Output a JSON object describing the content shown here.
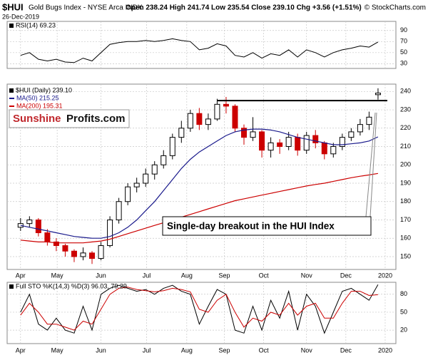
{
  "header": {
    "symbol": "$HUI",
    "name": "Gold Bugs Index - NYSE Arca INDX",
    "date": "26-Dec-2019",
    "quote": "Open 238.24 High 241.74 Low 235.54 Close 239.10 Chg +3.56 (+1.51%)",
    "copyright": "© StockCharts.com"
  },
  "logo": {
    "part1": "Sunshine",
    "part2": "Profits.com"
  },
  "annotation": "Single-day breakout in the HUI Index",
  "chart_data": [
    {
      "type": "line",
      "legend": "RSI(14) 69.23",
      "xlim": [
        -1.5,
        42
      ],
      "ylim": [
        15,
        100
      ],
      "yticks": [
        90,
        70,
        50,
        30
      ],
      "grid": true,
      "series": [
        {
          "name": "RSI(14)",
          "color": "#000000",
          "values": [
            45,
            50,
            38,
            35,
            38,
            33,
            32,
            40,
            35,
            50,
            65,
            68,
            70,
            70,
            72,
            70,
            72,
            75,
            72,
            70,
            55,
            58,
            66,
            62,
            45,
            42,
            50,
            40,
            48,
            45,
            55,
            42,
            55,
            50,
            42,
            50,
            55,
            58,
            62,
            60,
            69.23
          ]
        }
      ]
    },
    {
      "type": "candlestick",
      "xlim": [
        -1.5,
        42
      ],
      "xticks": [
        {
          "value": 0,
          "label": "Apr"
        },
        {
          "value": 4.1,
          "label": "May"
        },
        {
          "value": 9,
          "label": "Jun"
        },
        {
          "value": 14.1,
          "label": "Jul"
        },
        {
          "value": 18.6,
          "label": "Aug"
        },
        {
          "value": 22.8,
          "label": "Sep"
        },
        {
          "value": 27.2,
          "label": "Oct"
        },
        {
          "value": 32,
          "label": "Nov"
        },
        {
          "value": 36.4,
          "label": "Dec"
        },
        {
          "value": 40.8,
          "label": "2020"
        }
      ],
      "ylim": [
        143,
        244
      ],
      "yticks": [
        240,
        230,
        220,
        210,
        200,
        190,
        180,
        170,
        160,
        150
      ],
      "grid": true,
      "resistance": 235,
      "name": "$HUI (Daily) 239.10",
      "up_color": "#000000",
      "down_color": "#cc0000",
      "open": [
        166,
        168,
        170,
        163,
        158,
        156,
        153,
        150,
        152,
        149,
        156,
        170,
        180,
        188,
        190,
        195,
        200,
        205,
        215,
        220,
        228,
        222,
        225,
        233,
        232,
        220,
        215,
        218,
        208,
        212,
        210,
        215,
        208,
        216,
        212,
        206,
        210,
        215,
        218,
        222,
        238.24
      ],
      "high": [
        171,
        172,
        171,
        165,
        160,
        157,
        154,
        155,
        153,
        158,
        172,
        182,
        190,
        193,
        198,
        202,
        208,
        217,
        224,
        230,
        231,
        228,
        236,
        237,
        233,
        222,
        226,
        219,
        215,
        214,
        218,
        217,
        218,
        219,
        213,
        212,
        217,
        220,
        225,
        229,
        241.74
      ],
      "low": [
        164,
        166,
        161,
        156,
        153,
        150,
        147,
        148,
        146,
        148,
        155,
        168,
        178,
        185,
        188,
        192,
        198,
        203,
        212,
        218,
        219,
        219,
        224,
        228,
        218,
        211,
        213,
        204,
        204,
        206,
        208,
        205,
        206,
        209,
        203,
        204,
        208,
        213,
        216,
        219,
        235.54
      ],
      "close": [
        168,
        170,
        163,
        158,
        156,
        153,
        150,
        152,
        149,
        156,
        170,
        180,
        188,
        190,
        195,
        200,
        205,
        215,
        220,
        228,
        222,
        225,
        233,
        232,
        220,
        215,
        218,
        208,
        212,
        210,
        215,
        208,
        216,
        212,
        206,
        210,
        215,
        218,
        222,
        226,
        239.1
      ],
      "series": [
        {
          "name": "MA(50) 215.25",
          "color": "#1a1a8c",
          "values": [
            167,
            166,
            165,
            164,
            163,
            162,
            161,
            160.5,
            160,
            160,
            161,
            163,
            166,
            170,
            175,
            180,
            186,
            192,
            198,
            203,
            207,
            210,
            213,
            216,
            218,
            219,
            219.5,
            219.5,
            219,
            218,
            216.5,
            215,
            214,
            213,
            212,
            211,
            211,
            211.5,
            212,
            213,
            215.25
          ]
        },
        {
          "name": "MA(200) 195.31",
          "color": "#cc0000",
          "values": [
            159,
            158.5,
            158,
            158,
            157.5,
            157.5,
            157.5,
            157.5,
            158,
            158.5,
            159.5,
            161,
            162.5,
            164,
            165.5,
            167,
            168.5,
            170,
            171.5,
            173,
            174.5,
            176,
            177.5,
            179,
            180.5,
            181.5,
            182.5,
            183.5,
            184.5,
            185.5,
            186.5,
            187.5,
            188.5,
            189.3,
            190,
            191,
            192,
            193,
            193.8,
            194.5,
            195.31
          ]
        }
      ]
    },
    {
      "type": "line",
      "legend": "Full STO %K(14,3) %D(3) 96.03, 79.29",
      "xlim": [
        -1.5,
        42
      ],
      "xticks": [
        {
          "value": 0,
          "label": "Apr"
        },
        {
          "value": 4.1,
          "label": "May"
        },
        {
          "value": 9,
          "label": "Jun"
        },
        {
          "value": 14.1,
          "label": "Jul"
        },
        {
          "value": 18.6,
          "label": "Aug"
        },
        {
          "value": 22.8,
          "label": "Sep"
        },
        {
          "value": 27.2,
          "label": "Oct"
        },
        {
          "value": 32,
          "label": "Nov"
        },
        {
          "value": 36.4,
          "label": "Dec"
        },
        {
          "value": 40.8,
          "label": "2020"
        }
      ],
      "ylim": [
        -2.5,
        100
      ],
      "yticks": [
        80,
        50,
        20
      ],
      "grid": true,
      "series": [
        {
          "name": "%K(14,3)",
          "color": "#000000",
          "values": [
            50,
            80,
            30,
            20,
            40,
            20,
            15,
            60,
            20,
            80,
            90,
            95,
            90,
            85,
            88,
            80,
            90,
            95,
            85,
            80,
            30,
            60,
            88,
            80,
            20,
            15,
            60,
            20,
            70,
            40,
            85,
            20,
            80,
            60,
            15,
            50,
            85,
            90,
            80,
            70,
            96.03
          ]
        },
        {
          "name": "%D(3)",
          "color": "#cc0000",
          "values": [
            45,
            65,
            50,
            30,
            30,
            25,
            20,
            35,
            30,
            55,
            80,
            90,
            92,
            88,
            86,
            84,
            86,
            90,
            88,
            84,
            55,
            50,
            70,
            80,
            50,
            25,
            40,
            35,
            50,
            45,
            65,
            45,
            60,
            65,
            40,
            40,
            65,
            85,
            85,
            78,
            79.29
          ]
        }
      ]
    }
  ]
}
